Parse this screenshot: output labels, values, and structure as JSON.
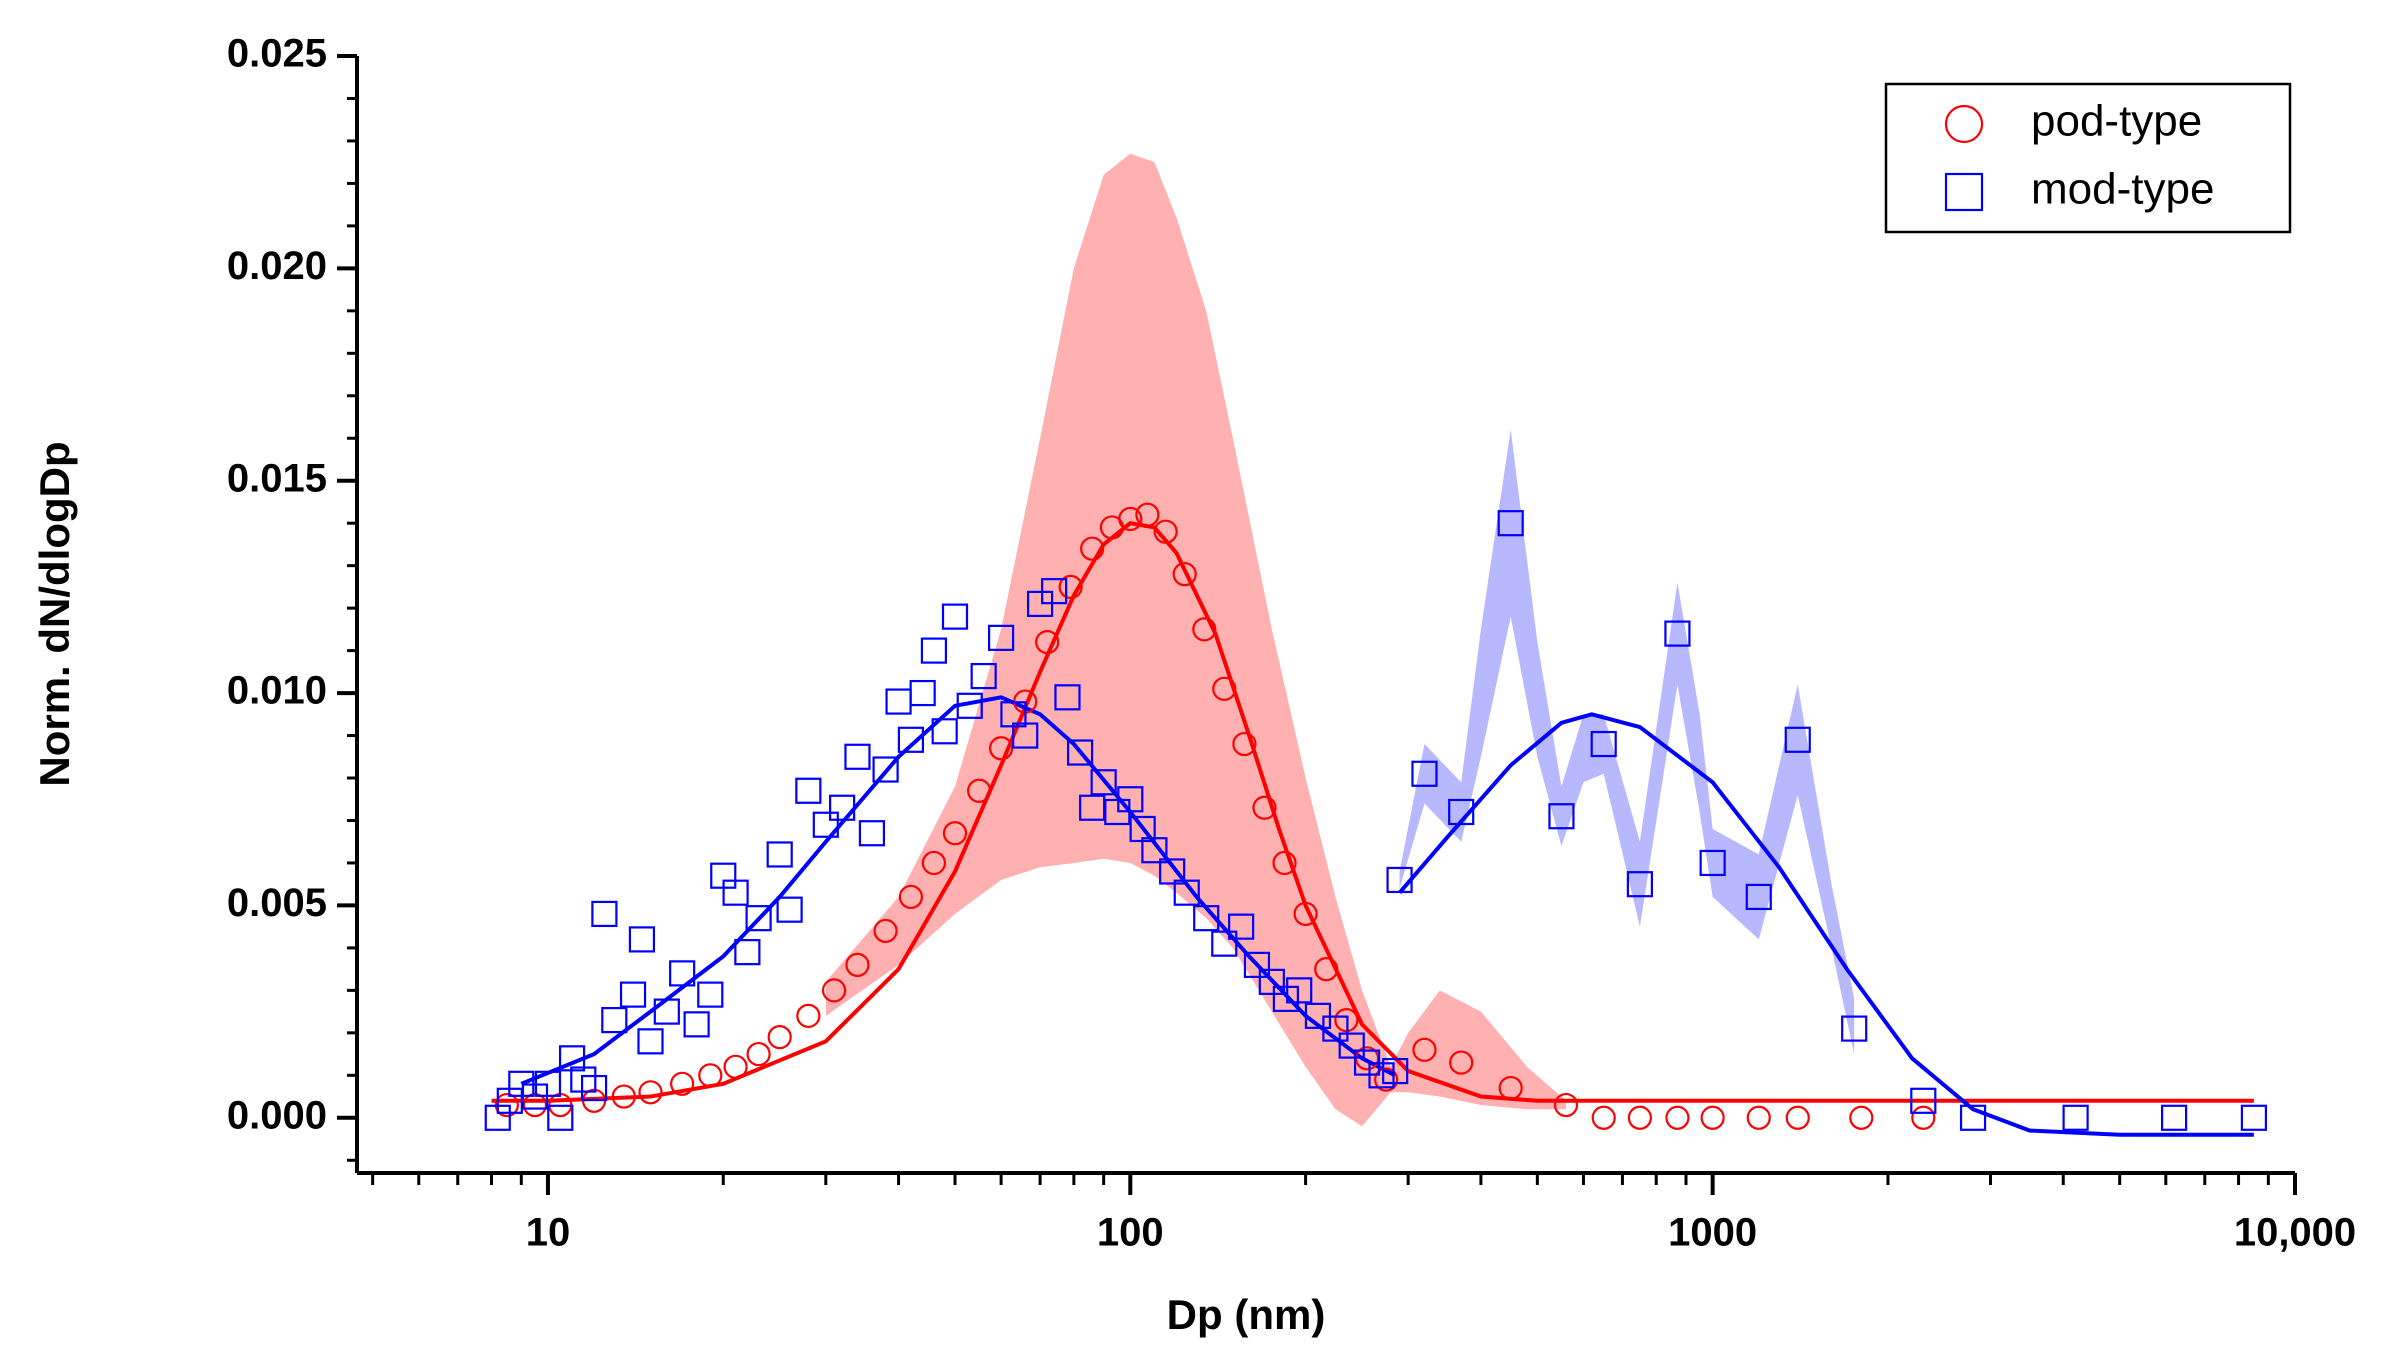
{
  "chart_data": {
    "type": "scatter",
    "x_label": "Dp (nm)",
    "y_label": "Norm. dN/dlogDp",
    "x_scale": "log",
    "xlim": [
      4.7,
      10000
    ],
    "ylim": [
      -0.0013,
      0.025
    ],
    "xticks": [
      10,
      100,
      1000,
      {
        "value": 10000,
        "label": "10,000"
      }
    ],
    "yticks": [
      {
        "value": 0,
        "label": "0.000"
      },
      {
        "value": 0.005,
        "label": "0.005"
      },
      {
        "value": 0.01,
        "label": "0.010"
      },
      {
        "value": 0.015,
        "label": "0.015"
      },
      {
        "value": 0.02,
        "label": "0.020"
      },
      {
        "value": 0.025,
        "label": "0.025"
      }
    ],
    "legend": "upper right",
    "series": [
      {
        "name": "pod-type",
        "color": "#ff0000",
        "marker": "circle",
        "x": [
          8.5,
          9.5,
          10.5,
          12,
          13.5,
          15,
          17,
          19,
          21,
          23,
          25,
          28,
          31,
          34,
          38,
          42,
          46,
          50,
          55,
          60,
          66,
          72,
          79,
          86,
          93,
          100,
          107,
          115,
          124,
          134,
          145,
          157,
          170,
          184,
          200,
          217,
          235,
          255,
          275,
          320,
          370,
          450,
          560,
          650,
          750,
          870,
          1000,
          1200,
          1400,
          1800,
          2300
        ],
        "values": [
          0.0003,
          0.0003,
          0.0003,
          0.0004,
          0.0005,
          0.0006,
          0.0008,
          0.001,
          0.0012,
          0.0015,
          0.0019,
          0.0024,
          0.003,
          0.0036,
          0.0044,
          0.0052,
          0.006,
          0.0067,
          0.0077,
          0.0087,
          0.0098,
          0.0112,
          0.0125,
          0.0134,
          0.0139,
          0.0141,
          0.0142,
          0.0138,
          0.0128,
          0.0115,
          0.0101,
          0.0088,
          0.0073,
          0.006,
          0.0048,
          0.0035,
          0.0023,
          0.0014,
          0.0009,
          0.0016,
          0.0013,
          0.0007,
          0.0003,
          0,
          0,
          0,
          0,
          0,
          0,
          0,
          0
        ]
      },
      {
        "name": "mod-type",
        "color": "#0000ff",
        "marker": "square",
        "x": [
          8.2,
          8.6,
          9,
          9.5,
          10,
          10.5,
          11,
          11.5,
          12,
          12.5,
          13,
          14,
          14.5,
          15,
          16,
          17,
          18,
          19,
          20,
          21,
          22,
          23,
          25,
          26,
          28,
          30,
          32,
          34,
          36,
          38,
          40,
          42,
          44,
          46,
          48,
          50,
          53,
          56,
          60,
          63,
          66,
          70,
          74,
          78,
          82,
          86,
          90,
          95,
          100,
          105,
          110,
          118,
          125,
          135,
          145,
          155,
          165,
          175,
          185,
          195,
          210,
          225,
          240,
          255,
          270,
          285,
          290,
          320,
          370,
          450,
          550,
          650,
          750,
          870,
          1000,
          1200,
          1400,
          1750,
          2300,
          2800,
          4200,
          6200,
          8500
        ],
        "values": [
          0,
          0.0004,
          0.0008,
          0.0005,
          0.0008,
          0,
          0.0014,
          0.0009,
          0.0007,
          0.0048,
          0.0023,
          0.0029,
          0.0042,
          0.0018,
          0.0025,
          0.0034,
          0.0022,
          0.0029,
          0.0057,
          0.0053,
          0.0039,
          0.0047,
          0.0062,
          0.0049,
          0.0077,
          0.0069,
          0.0073,
          0.0085,
          0.0067,
          0.0082,
          0.0098,
          0.0089,
          0.01,
          0.011,
          0.0091,
          0.0118,
          0.0097,
          0.0104,
          0.0113,
          0.0095,
          0.009,
          0.0121,
          0.0124,
          0.0099,
          0.0086,
          0.0073,
          0.0079,
          0.0072,
          0.0075,
          0.0068,
          0.0063,
          0.0058,
          0.0053,
          0.0047,
          0.0041,
          0.0045,
          0.0036,
          0.0032,
          0.0028,
          0.003,
          0.0024,
          0.0021,
          0.0017,
          0.0013,
          0.001,
          0.0011,
          0.0056,
          0.0081,
          0.0072,
          0.014,
          0.0071,
          0.0088,
          0.0055,
          0.0114,
          0.006,
          0.0052,
          0.0089,
          0.0021,
          0.0004,
          0,
          0,
          0,
          0
        ]
      }
    ],
    "fits": [
      {
        "color": "#ff0000",
        "x": [
          8,
          10,
          15,
          20,
          30,
          40,
          50,
          60,
          70,
          80,
          90,
          100,
          110,
          120,
          140,
          160,
          180,
          200,
          250,
          300,
          400,
          500,
          700,
          1000,
          2000,
          5000,
          8500
        ],
        "values": [
          0.0004,
          0.0004,
          0.0005,
          0.0008,
          0.0018,
          0.0035,
          0.0058,
          0.0083,
          0.0105,
          0.0123,
          0.0135,
          0.014,
          0.0139,
          0.0133,
          0.0114,
          0.009,
          0.0068,
          0.005,
          0.0022,
          0.0011,
          0.0005,
          0.0004,
          0.0004,
          0.0004,
          0.0004,
          0.0004,
          0.0004
        ]
      },
      {
        "color": "#0000ff",
        "x": [
          9,
          12,
          15,
          20,
          25,
          30,
          40,
          50,
          60,
          70,
          80,
          100,
          130,
          160,
          200,
          250,
          285,
          287,
          290,
          350,
          450,
          550,
          620,
          750,
          1000,
          1300,
          1700,
          2200,
          2800,
          3500,
          5000,
          8500
        ],
        "values": [
          0.0008,
          0.0015,
          0.0025,
          0.0038,
          0.0052,
          0.0065,
          0.0085,
          0.0097,
          0.0099,
          0.0095,
          0.0088,
          0.0072,
          0.0052,
          0.0038,
          0.0024,
          0.0014,
          0.001,
          null,
          0.0053,
          0.0066,
          0.0083,
          0.0093,
          0.0095,
          0.0092,
          0.0079,
          0.0059,
          0.0035,
          0.0014,
          0.0002,
          -0.0003,
          -0.0004,
          -0.0004
        ]
      }
    ],
    "bands": [
      {
        "color": "#ffb0b0",
        "x": [
          30,
          40,
          50,
          60,
          70,
          80,
          90,
          100,
          110,
          120,
          135,
          150,
          175,
          200,
          225,
          250,
          280,
          300,
          340,
          400,
          480,
          560
        ],
        "upper": [
          0.0032,
          0.0052,
          0.0078,
          0.0115,
          0.016,
          0.02,
          0.0222,
          0.0227,
          0.0225,
          0.0212,
          0.019,
          0.016,
          0.0115,
          0.008,
          0.0052,
          0.003,
          0.0012,
          0.002,
          0.003,
          0.0025,
          0.0012,
          0.0004
        ],
        "lower": [
          0.0024,
          0.0036,
          0.0048,
          0.0056,
          0.0059,
          0.006,
          0.0061,
          0.006,
          0.0057,
          0.0053,
          0.0047,
          0.004,
          0.0025,
          0.0012,
          0.0002,
          -0.0002,
          0.0006,
          0.0006,
          0.0005,
          0.0003,
          0.0002,
          0.0002
        ]
      },
      {
        "color": "#b8b8ff",
        "x": [
          290,
          320,
          370,
          400,
          450,
          500,
          550,
          600,
          650,
          750,
          870,
          950,
          1000,
          1200,
          1400,
          1600,
          1750
        ],
        "upper": [
          0.0058,
          0.0088,
          0.0079,
          0.0115,
          0.0162,
          0.0112,
          0.0078,
          0.0095,
          0.0095,
          0.0065,
          0.0126,
          0.0095,
          0.0068,
          0.0062,
          0.0102,
          0.0055,
          0.0028
        ],
        "lower": [
          0.0054,
          0.0074,
          0.0065,
          0.0085,
          0.0118,
          0.0085,
          0.0064,
          0.0079,
          0.0081,
          0.0045,
          0.0102,
          0.0072,
          0.0052,
          0.0042,
          0.0076,
          0.004,
          0.0015
        ]
      }
    ]
  }
}
